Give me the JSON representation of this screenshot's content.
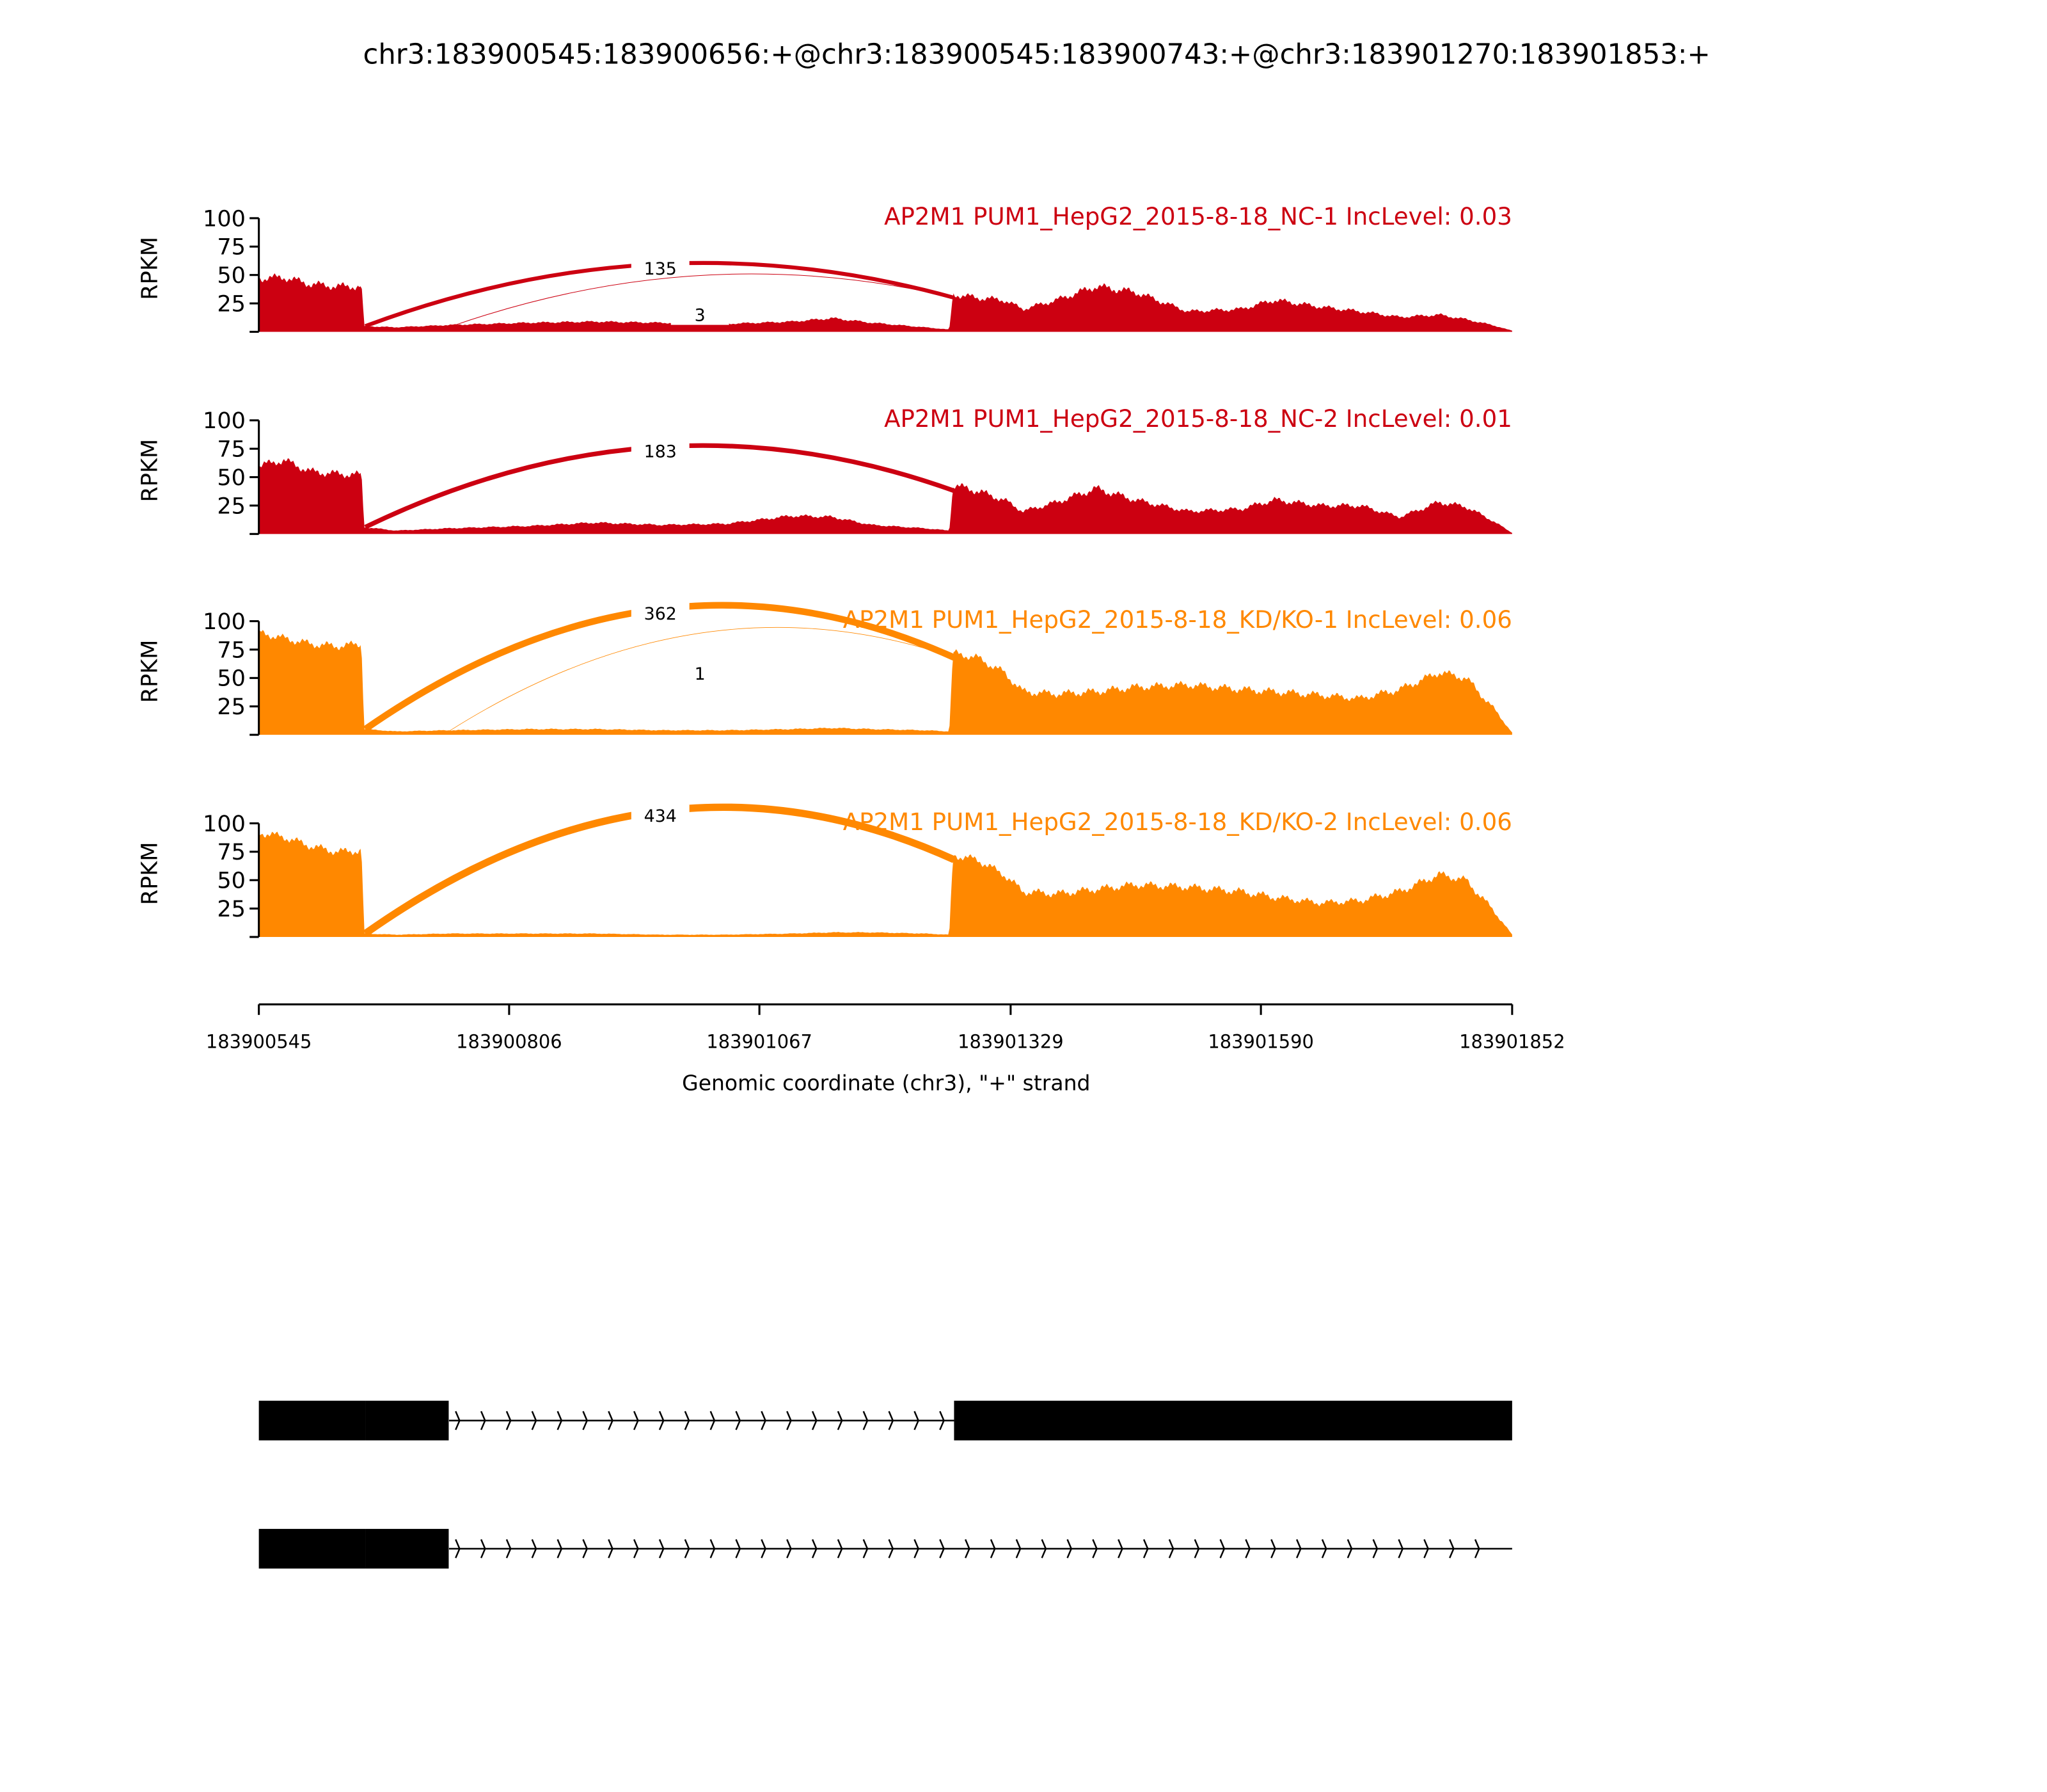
{
  "chart_data": {
    "type": "area",
    "title": "chr3:183900545:183900656:+@chr3:183900545:183900743:+@chr3:183901270:183901853:+",
    "xlabel": "Genomic coordinate (chr3), \"+\" strand",
    "ylabel": "RPKM",
    "xlim": [
      183900545,
      183901852
    ],
    "ylim": [
      0,
      100
    ],
    "x_ticks": [
      "183900545",
      "183900806",
      "183901067",
      "183901329",
      "183901590",
      "183901852"
    ],
    "y_ticks": [
      "25",
      "50",
      "75",
      "100"
    ],
    "positions": [
      183900545,
      183900571,
      183900599,
      183900626,
      183900652,
      183900655,
      183900688,
      183900743,
      183900826,
      183900895,
      183900964,
      183901032,
      183901101,
      183901143,
      183901184,
      183901239,
      183901265,
      183901269,
      183901294,
      183901322,
      183901342,
      183901377,
      183901418,
      183901459,
      183901514,
      183901569,
      183901604,
      183901652,
      183901693,
      183901735,
      183901776,
      183901804,
      183901831,
      183901852
    ],
    "series": [
      {
        "name": "AP2M1 PUM1_HepG2_2015-8-18_NC-1 IncLevel: 0.03",
        "color": "#cc0011",
        "values": [
          47,
          48,
          42,
          40,
          40,
          5,
          4,
          6,
          8,
          9,
          8,
          7,
          9,
          12,
          8,
          4,
          2,
          33,
          30,
          28,
          20,
          28,
          40,
          35,
          18,
          20,
          28,
          22,
          18,
          13,
          15,
          11,
          6,
          1
        ],
        "junctions": [
          {
            "start": 183900656,
            "end": 183901270,
            "count": "135",
            "peak": 55,
            "width": 3
          },
          {
            "start": 183900743,
            "end": 183901270,
            "count": "3",
            "peak": 45,
            "width": 0.5
          }
        ]
      },
      {
        "name": "AP2M1 PUM1_HepG2_2015-8-18_NC-2 IncLevel: 0.01",
        "color": "#cc0011",
        "values": [
          60,
          65,
          55,
          53,
          52,
          6,
          3,
          5,
          7,
          10,
          8,
          9,
          16,
          15,
          8,
          5,
          3,
          43,
          38,
          30,
          20,
          28,
          40,
          30,
          20,
          22,
          30,
          25,
          25,
          15,
          28,
          24,
          12,
          1
        ],
        "junctions": [
          {
            "start": 183900656,
            "end": 183901270,
            "count": "183",
            "peak": 72,
            "width": 3.5
          }
        ]
      },
      {
        "name": "AP2M1 PUM1_HepG2_2015-8-18_KD/KO-1 IncLevel: 0.06",
        "color": "#ff8800",
        "values": [
          90,
          85,
          80,
          78,
          80,
          5,
          3,
          4,
          5,
          5,
          4,
          4,
          5,
          6,
          5,
          4,
          3,
          72,
          68,
          55,
          38,
          36,
          38,
          42,
          44,
          40,
          38,
          35,
          32,
          40,
          55,
          50,
          25,
          2
        ],
        "junctions": [
          {
            "start": 183900656,
            "end": 183901270,
            "count": "362",
            "peak": 106,
            "width": 5
          },
          {
            "start": 183900743,
            "end": 183901270,
            "count": "1",
            "peak": 85,
            "width": 0.4
          }
        ]
      },
      {
        "name": "AP2M1 PUM1_HepG2_2015-8-18_KD/KO-2 IncLevel: 0.06",
        "color": "#ff8800",
        "values": [
          92,
          88,
          80,
          75,
          76,
          3,
          2,
          3,
          3,
          3,
          2,
          2,
          3,
          4,
          4,
          3,
          2,
          72,
          68,
          55,
          40,
          38,
          42,
          46,
          44,
          40,
          35,
          30,
          32,
          40,
          55,
          50,
          25,
          2
        ],
        "junctions": [
          {
            "start": 183900656,
            "end": 183901270,
            "count": "434",
            "peak": 106,
            "width": 5.5
          }
        ]
      }
    ],
    "gene_models": [
      {
        "exons": [
          [
            183900545,
            183900656
          ],
          [
            183900656,
            183900743
          ],
          [
            183901270,
            183901852
          ]
        ],
        "intron_end": 183901270
      },
      {
        "exons": [
          [
            183900545,
            183900656
          ],
          [
            183900656,
            183900743
          ]
        ],
        "intron_end": 183901852
      }
    ]
  }
}
